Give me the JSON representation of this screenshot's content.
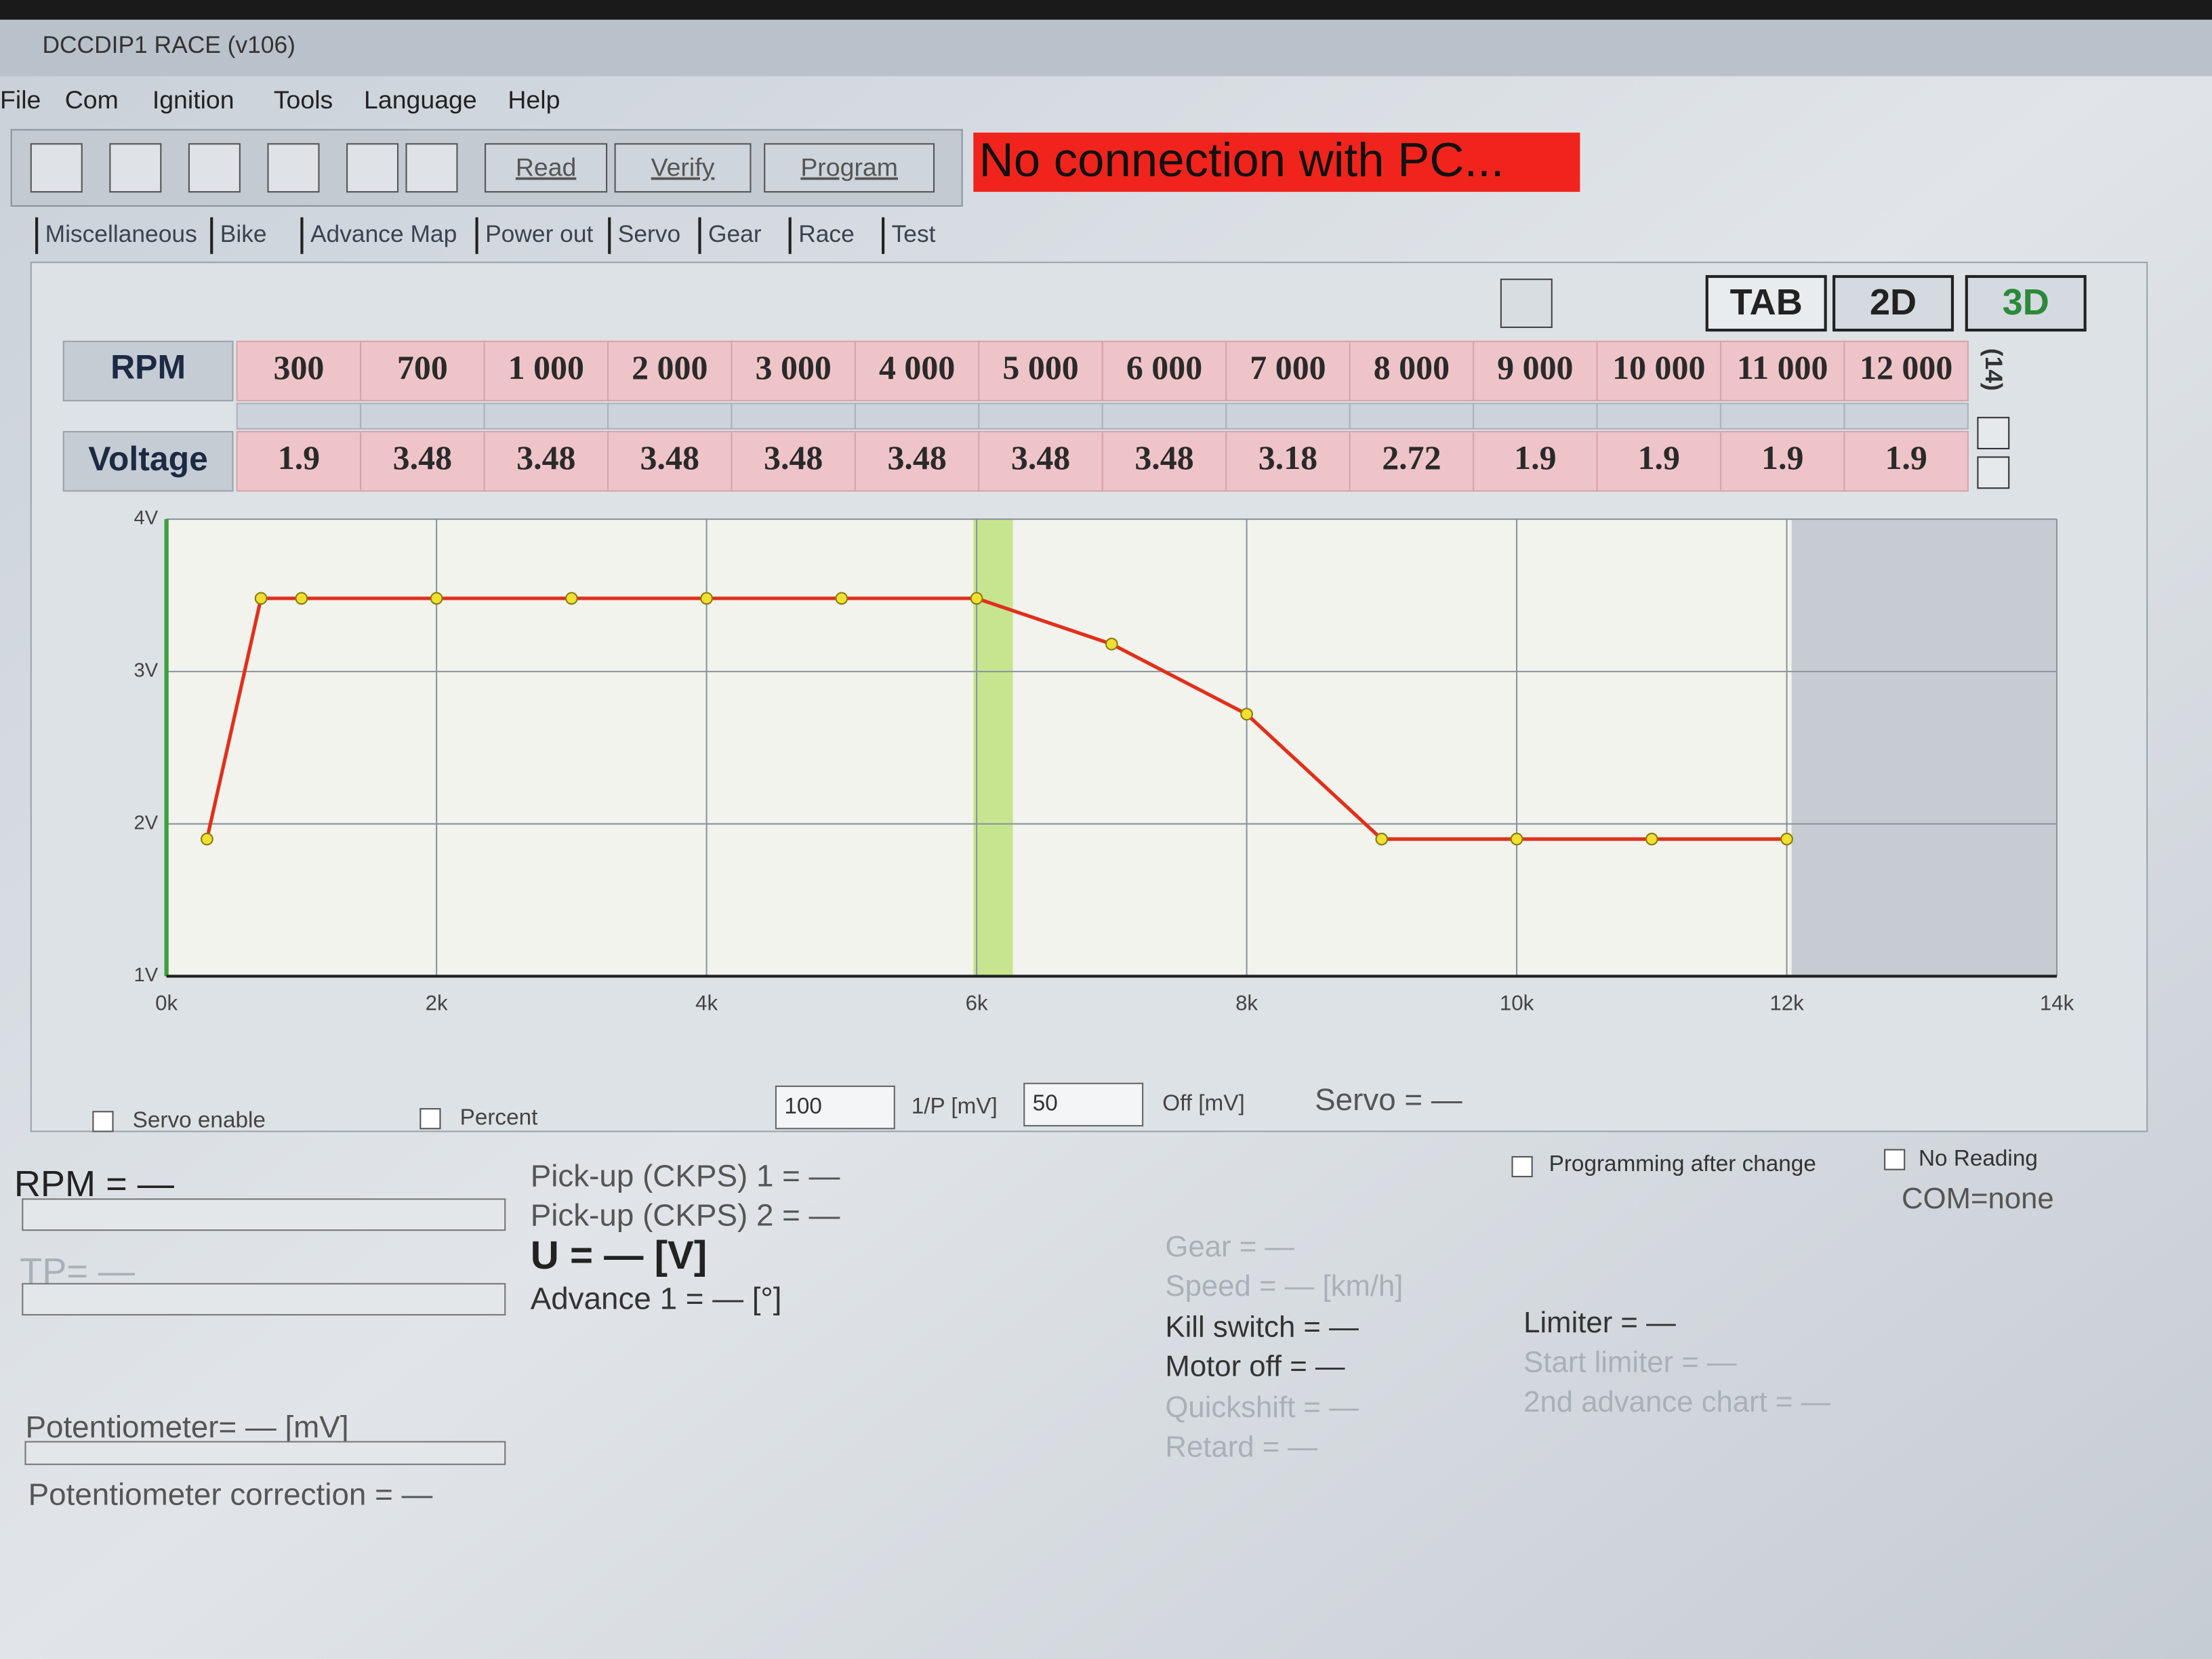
{
  "window": {
    "title": "DCCDIP1 RACE (v106)"
  },
  "menu": [
    "File",
    "Com",
    "Ignition",
    "Tools",
    "Language",
    "Help"
  ],
  "toolbar": {
    "buttons": [
      "Read",
      "Verify",
      "Program"
    ],
    "status": "No connection with PC..."
  },
  "tabs": [
    "Miscellaneous",
    "Bike",
    "Advance Map",
    "Power out",
    "Servo",
    "Gear",
    "Race",
    "Test"
  ],
  "view_buttons": [
    "TAB",
    "2D",
    "3D"
  ],
  "table": {
    "row_headers": [
      "RPM",
      "Voltage"
    ],
    "rpm": [
      "300",
      "700",
      "1 000",
      "2 000",
      "3 000",
      "4 000",
      "5 000",
      "6 000",
      "7 000",
      "8 000",
      "9 000",
      "10 000",
      "11 000",
      "12 000"
    ],
    "count": "(14)"
  },
  "chart_data": {
    "type": "line",
    "x": [
      300,
      700,
      1000,
      2000,
      3000,
      4000,
      5000,
      6000,
      7000,
      8000,
      9000,
      10000,
      11000,
      12000
    ],
    "series": [
      {
        "color": "#e0301c",
        "values": [
          1.9,
          3.48,
          3.48,
          3.48,
          3.48,
          3.48,
          3.48,
          3.48,
          3.18,
          2.72,
          1.9,
          1.9,
          1.9,
          1.9
        ]
      }
    ],
    "xlim": [
      0,
      14000
    ],
    "xticks": [
      {
        "value": 0,
        "label": "0k"
      },
      {
        "value": 2000,
        "label": "2k"
      },
      {
        "value": 4000,
        "label": "4k"
      },
      {
        "value": 6000,
        "label": "6k"
      },
      {
        "value": 8000,
        "label": "8k"
      },
      {
        "value": 10000,
        "label": "10k"
      },
      {
        "value": 12000,
        "label": "12k"
      },
      {
        "value": 14000,
        "label": "14k"
      }
    ],
    "ylim": [
      1,
      4
    ],
    "yticks": [
      {
        "value": 1,
        "label": "1V"
      },
      {
        "value": 2,
        "label": "2V"
      },
      {
        "value": 3,
        "label": "3V"
      },
      {
        "value": 4,
        "label": "4V"
      }
    ],
    "grid": true
  },
  "controls": {
    "servo_enable": "Servo enable",
    "percent": "Percent",
    "ip_value": "100",
    "ip_label": "1/P [mV]",
    "off_value": "50",
    "off_label": "Off [mV]",
    "servo": "Servo = —"
  },
  "readouts": {
    "rpm": "RPM = —",
    "tp": "TP= —",
    "potentiometer": "Potentiometer= — [mV]",
    "pot_correction": "Potentiometer correction = —",
    "pickup1": "Pick-up (CKPS) 1 = —",
    "pickup2": "Pick-up (CKPS) 2 = —",
    "u": "U = — [V]",
    "advance": "Advance 1 = — [°]",
    "programming": "Programming after change",
    "no_reading": "No Reading",
    "com": "COM=none",
    "gear": "Gear = —",
    "speed": "Speed = — [km/h]",
    "kill": "Kill switch = —",
    "motor_off": "Motor off = —",
    "quickshift": "Quickshift = —",
    "retard": "Retard = —",
    "limiter": "Limiter = —",
    "start_limiter": "Start limiter = —",
    "advance_chart": "2nd advance chart = —"
  }
}
